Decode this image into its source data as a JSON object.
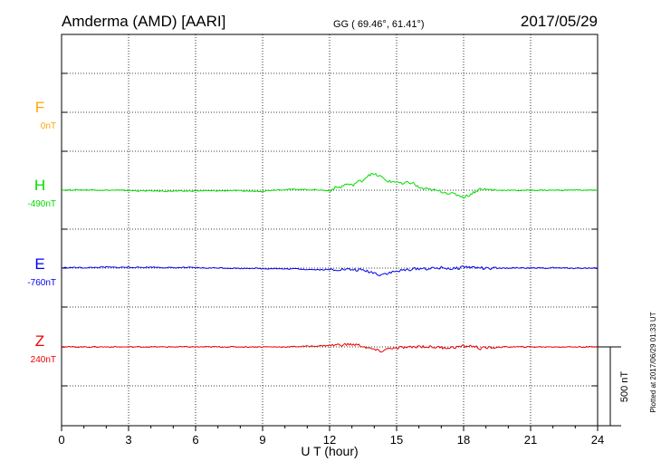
{
  "header": {
    "station": "Amderma (AMD)  [AARI]",
    "coords": "GG ( 69.46°,  61.41°)",
    "date": "2017/05/29"
  },
  "side_note": "Plotted at 2017/06/29 01:33 UT",
  "scale_label": "500 nT",
  "chart_data": {
    "type": "line",
    "xlabel": "U T (hour)",
    "xlim": [
      0,
      24
    ],
    "xticks": [
      "0",
      "3",
      "6",
      "9",
      "12",
      "15",
      "18",
      "21",
      "24"
    ],
    "units": "nT",
    "scale_bar_nT": 500,
    "grid": true,
    "series": [
      {
        "name": "F",
        "offset_label": "0nT",
        "color": "#ffa500",
        "x": [],
        "y": []
      },
      {
        "name": "H",
        "offset_label": "-490nT",
        "color": "#00dd00",
        "x": [
          0,
          0.5,
          1,
          1.5,
          2,
          2.5,
          3,
          3.5,
          4,
          4.5,
          5,
          5.5,
          6,
          6.5,
          7,
          7.5,
          8,
          8.5,
          9,
          9.5,
          10,
          10.5,
          11,
          11.5,
          12,
          12.25,
          12.5,
          12.75,
          13,
          13.25,
          13.5,
          13.75,
          14,
          14.25,
          14.5,
          14.75,
          15,
          15.25,
          15.5,
          15.75,
          16,
          16.25,
          16.5,
          16.75,
          17,
          17.25,
          17.5,
          17.75,
          18,
          18.25,
          18.5,
          18.75,
          19,
          19.5,
          20,
          20.5,
          21,
          21.5,
          22,
          22.5,
          23,
          23.5,
          24
        ],
        "y": [
          0,
          2,
          2,
          2,
          0,
          0,
          -2,
          -4,
          -4,
          -6,
          -6,
          -6,
          -4,
          -4,
          -4,
          -2,
          -4,
          -6,
          -6,
          2,
          4,
          6,
          4,
          2,
          -4,
          16,
          20,
          40,
          30,
          52,
          64,
          100,
          100,
          90,
          64,
          52,
          56,
          36,
          50,
          44,
          16,
          8,
          4,
          -2,
          -8,
          -16,
          -24,
          -30,
          -44,
          -30,
          -10,
          10,
          4,
          0,
          0,
          -2,
          0,
          0,
          0,
          0,
          2,
          0,
          0
        ]
      },
      {
        "name": "E",
        "offset_label": "-760nT",
        "color": "#0000ee",
        "x": [
          0,
          0.5,
          1,
          1.5,
          2,
          2.5,
          3,
          3.5,
          4,
          4.5,
          5,
          5.5,
          6,
          6.5,
          7,
          7.5,
          8,
          8.5,
          9,
          9.5,
          10,
          10.5,
          11,
          11.5,
          12,
          12.5,
          13,
          13.5,
          13.75,
          14,
          14.25,
          14.5,
          14.75,
          15,
          15.25,
          15.5,
          16,
          16.5,
          17,
          17.25,
          17.5,
          17.75,
          18,
          18.25,
          18.5,
          18.75,
          19,
          19.5,
          20,
          20.5,
          21,
          21.5,
          22,
          22.5,
          23,
          23.5,
          24
        ],
        "y": [
          2,
          4,
          2,
          4,
          6,
          4,
          6,
          4,
          6,
          4,
          2,
          4,
          2,
          0,
          2,
          0,
          -2,
          0,
          -4,
          -2,
          -6,
          -4,
          -8,
          -10,
          -10,
          -8,
          -10,
          -14,
          -22,
          -30,
          -42,
          -34,
          -28,
          -20,
          -16,
          -10,
          -2,
          -4,
          2,
          0,
          -6,
          0,
          10,
          6,
          4,
          2,
          -4,
          -2,
          0,
          2,
          0,
          0,
          2,
          0,
          0,
          0,
          0
        ]
      },
      {
        "name": "Z",
        "offset_label": "240nT",
        "color": "#ee0000",
        "x": [
          0,
          1,
          2,
          3,
          4,
          5,
          6,
          7,
          8,
          9,
          10,
          10.5,
          11,
          11.5,
          12,
          12.5,
          13,
          13.25,
          13.5,
          13.75,
          14,
          14.25,
          14.5,
          14.75,
          15,
          15.25,
          15.5,
          16,
          16.5,
          17,
          17.5,
          18,
          18.25,
          18.5,
          18.75,
          19,
          19.5,
          20,
          20.5,
          21,
          22,
          23,
          24
        ],
        "y": [
          0,
          0,
          0,
          0,
          0,
          0,
          0,
          0,
          0,
          0,
          0,
          2,
          4,
          6,
          10,
          14,
          16,
          12,
          4,
          -10,
          -16,
          -30,
          -18,
          -6,
          -12,
          -2,
          -6,
          4,
          0,
          -4,
          -4,
          4,
          6,
          2,
          -10,
          -6,
          -2,
          0,
          0,
          0,
          0,
          0,
          0
        ]
      }
    ]
  }
}
